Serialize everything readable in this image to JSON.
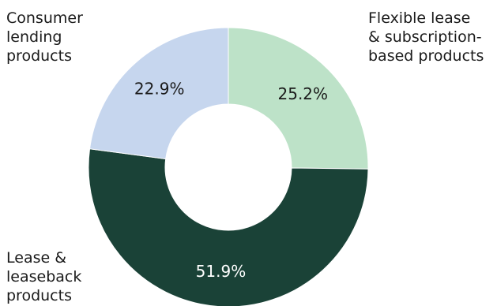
{
  "chart_data": {
    "type": "pie",
    "donut": true,
    "categories": [
      "Flexible lease & subscription-based products",
      "Lease & leaseback products",
      "Consumer lending products"
    ],
    "values": [
      25.2,
      51.9,
      22.9
    ],
    "value_labels": [
      "25.2%",
      "51.9%",
      "22.9%"
    ],
    "colors": [
      "#bde2c8",
      "#1a4237",
      "#c6d6ee"
    ],
    "label_colors": [
      "#1a1a1a",
      "#ffffff",
      "#1a1a1a"
    ],
    "legend": "outside-labels",
    "labels": {
      "consumer": [
        "Consumer",
        "lending",
        "products"
      ],
      "flexible": [
        "Flexible lease",
        "& subscription-",
        "based products"
      ],
      "lease": [
        "Lease &",
        "leaseback",
        "products"
      ]
    }
  }
}
